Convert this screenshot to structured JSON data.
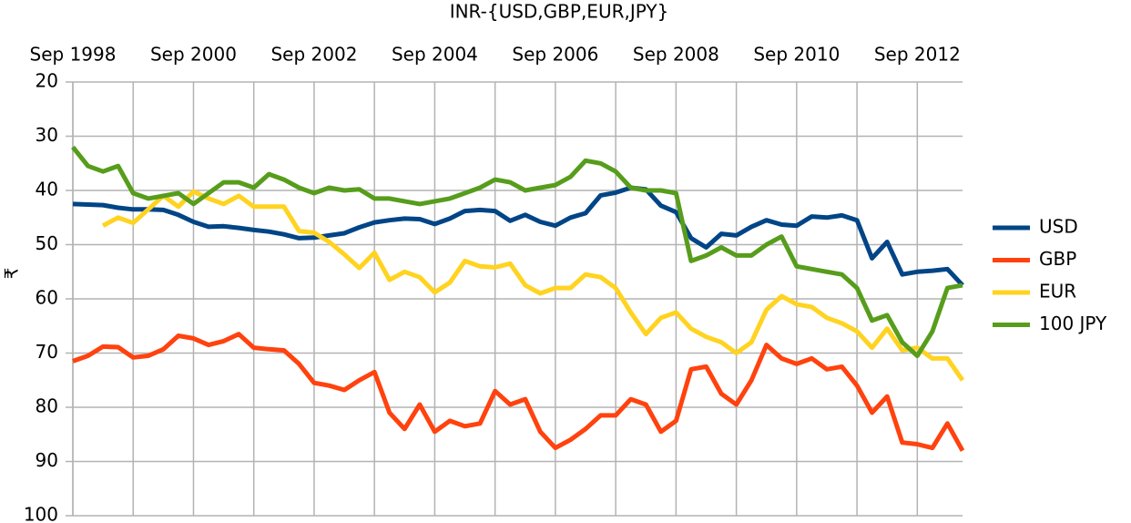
{
  "chart_data": {
    "type": "line",
    "title": "INR-{USD,GBP,EUR,JPY}",
    "y_label": "₹",
    "x": [
      "Sep 1998",
      "Dec 1998",
      "Mar 1999",
      "Jun 1999",
      "Sep 1999",
      "Dec 1999",
      "Mar 2000",
      "Jun 2000",
      "Sep 2000",
      "Dec 2000",
      "Mar 2001",
      "Jun 2001",
      "Sep 2001",
      "Dec 2001",
      "Mar 2002",
      "Jun 2002",
      "Sep 2002",
      "Dec 2002",
      "Mar 2003",
      "Jun 2003",
      "Sep 2003",
      "Dec 2003",
      "Mar 2004",
      "Jun 2004",
      "Sep 2004",
      "Dec 2004",
      "Mar 2005",
      "Jun 2005",
      "Sep 2005",
      "Dec 2005",
      "Mar 2006",
      "Jun 2006",
      "Sep 2006",
      "Dec 2006",
      "Mar 2007",
      "Jun 2007",
      "Sep 2007",
      "Dec 2007",
      "Mar 2008",
      "Jun 2008",
      "Sep 2008",
      "Dec 2008",
      "Mar 2009",
      "Jun 2009",
      "Sep 2009",
      "Dec 2009",
      "Mar 2010",
      "Jun 2010",
      "Sep 2010",
      "Dec 2010",
      "Mar 2011",
      "Jun 2011",
      "Sep 2011",
      "Dec 2011",
      "Mar 2012",
      "Jun 2012",
      "Sep 2012",
      "Dec 2012",
      "Mar 2013",
      "Jun 2013"
    ],
    "series": [
      {
        "name": "USD",
        "color": "#004586",
        "values": [
          42.5,
          42.6,
          42.7,
          43.2,
          43.5,
          43.5,
          43.6,
          44.5,
          45.8,
          46.7,
          46.6,
          46.9,
          47.3,
          47.6,
          48.1,
          48.8,
          48.7,
          48.3,
          47.9,
          46.8,
          45.9,
          45.5,
          45.2,
          45.3,
          46.2,
          45.2,
          43.8,
          43.6,
          43.8,
          45.6,
          44.5,
          45.8,
          46.5,
          45.0,
          44.2,
          40.9,
          40.4,
          39.5,
          39.8,
          42.8,
          44.0,
          48.8,
          50.5,
          48.0,
          48.3,
          46.7,
          45.5,
          46.3,
          46.5,
          44.8,
          45.0,
          44.6,
          45.5,
          52.5,
          49.5,
          55.5,
          55.0,
          54.8,
          54.5,
          57.5
        ]
      },
      {
        "name": "GBP",
        "color": "#ff420e",
        "values": [
          71.5,
          70.5,
          68.8,
          68.9,
          70.8,
          70.5,
          69.3,
          66.8,
          67.3,
          68.5,
          67.8,
          66.5,
          69.0,
          69.3,
          69.5,
          72.0,
          75.5,
          76.0,
          76.8,
          75.0,
          73.5,
          81.0,
          84.0,
          79.5,
          84.5,
          82.5,
          83.5,
          83.0,
          77.0,
          79.5,
          78.5,
          84.5,
          87.5,
          86.0,
          84.0,
          81.5,
          81.5,
          78.5,
          79.5,
          84.5,
          82.5,
          73.0,
          72.5,
          77.5,
          79.5,
          75.0,
          68.5,
          71.0,
          72.0,
          71.0,
          73.0,
          72.5,
          76.0,
          81.0,
          78.0,
          86.5,
          86.8,
          87.5,
          83.0,
          88.0
        ]
      },
      {
        "name": "EUR",
        "color": "#ffd320",
        "values": [
          null,
          null,
          46.5,
          45.0,
          46.0,
          43.5,
          41.0,
          43.0,
          40.2,
          41.5,
          42.5,
          41.0,
          43.0,
          43.0,
          43.0,
          47.5,
          47.8,
          49.5,
          51.8,
          54.3,
          51.5,
          56.5,
          55.0,
          56.0,
          58.8,
          57.0,
          53.0,
          54.0,
          54.2,
          53.5,
          57.5,
          59.0,
          58.0,
          58.0,
          55.5,
          56.0,
          58.0,
          62.5,
          66.5,
          63.5,
          62.5,
          65.5,
          67.0,
          68.0,
          70.0,
          68.0,
          62.0,
          59.5,
          61.0,
          61.5,
          63.5,
          64.5,
          66.0,
          69.0,
          65.5,
          69.5,
          69.0,
          71.0,
          71.0,
          75.0
        ]
      },
      {
        "name": "100 JPY",
        "color": "#579d1c",
        "values": [
          32.0,
          35.5,
          36.5,
          35.5,
          40.5,
          41.5,
          41.0,
          40.5,
          42.5,
          40.5,
          38.5,
          38.5,
          39.5,
          37.0,
          38.0,
          39.5,
          40.5,
          39.5,
          40.0,
          39.8,
          41.5,
          41.5,
          42.0,
          42.5,
          42.0,
          41.5,
          40.5,
          39.5,
          38.0,
          38.5,
          40.0,
          39.5,
          39.0,
          37.5,
          34.5,
          35.0,
          36.5,
          39.5,
          40.0,
          40.0,
          40.5,
          53.0,
          52.0,
          50.5,
          52.0,
          52.0,
          50.0,
          48.5,
          54.0,
          54.5,
          55.0,
          55.5,
          58.0,
          64.0,
          63.0,
          68.0,
          70.5,
          66.0,
          58.0,
          57.5
        ]
      }
    ],
    "xlim": [
      "Sep 1998",
      "Jun 2013"
    ],
    "xticks": [
      "Sep 1998",
      "Sep 2000",
      "Sep 2002",
      "Sep 2004",
      "Sep 2006",
      "Sep 2008",
      "Sep 2010",
      "Sep 2012"
    ],
    "x_minor_grid": [
      "Sep 1999",
      "Sep 2001",
      "Sep 2003",
      "Sep 2005",
      "Sep 2007",
      "Sep 2009",
      "Sep 2011"
    ],
    "x_axis_position": "top",
    "ylim": [
      20,
      100
    ],
    "y_inverted": true,
    "yticks": [
      20,
      30,
      40,
      50,
      60,
      70,
      80,
      90,
      100
    ],
    "grid": true,
    "legend": "right"
  }
}
